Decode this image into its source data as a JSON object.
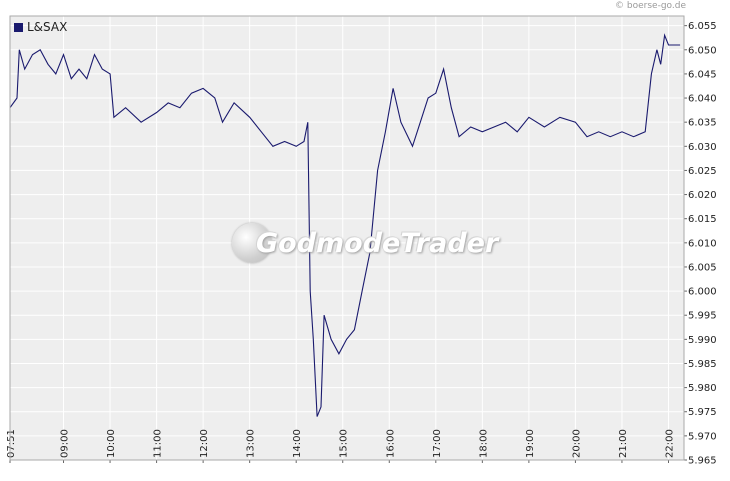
{
  "copyright": "© boerse-go.de",
  "watermark": "GodmodeTrader",
  "colors": {
    "line": "#1a1a6e",
    "plot_bg": "#eeeeee",
    "grid": "#ffffff",
    "frame": "#aaaaaa"
  },
  "chart_data": {
    "type": "line",
    "series": [
      {
        "name": "L&SAX",
        "points": [
          [
            "07:51",
            6.038
          ],
          [
            "08:00",
            6.04
          ],
          [
            "08:03",
            6.05
          ],
          [
            "08:10",
            6.046
          ],
          [
            "08:20",
            6.049
          ],
          [
            "08:30",
            6.05
          ],
          [
            "08:40",
            6.047
          ],
          [
            "08:50",
            6.045
          ],
          [
            "09:00",
            6.049
          ],
          [
            "09:10",
            6.044
          ],
          [
            "09:20",
            6.046
          ],
          [
            "09:30",
            6.044
          ],
          [
            "09:40",
            6.049
          ],
          [
            "09:50",
            6.046
          ],
          [
            "10:00",
            6.045
          ],
          [
            "10:05",
            6.036
          ],
          [
            "10:20",
            6.038
          ],
          [
            "10:40",
            6.035
          ],
          [
            "11:00",
            6.037
          ],
          [
            "11:15",
            6.039
          ],
          [
            "11:30",
            6.038
          ],
          [
            "11:45",
            6.041
          ],
          [
            "12:00",
            6.042
          ],
          [
            "12:15",
            6.04
          ],
          [
            "12:25",
            6.035
          ],
          [
            "12:40",
            6.039
          ],
          [
            "13:00",
            6.036
          ],
          [
            "13:15",
            6.033
          ],
          [
            "13:30",
            6.03
          ],
          [
            "13:45",
            6.031
          ],
          [
            "14:00",
            6.03
          ],
          [
            "14:10",
            6.031
          ],
          [
            "14:15",
            6.035
          ],
          [
            "14:18",
            6.0
          ],
          [
            "14:22",
            5.99
          ],
          [
            "14:27",
            5.974
          ],
          [
            "14:32",
            5.976
          ],
          [
            "14:36",
            5.995
          ],
          [
            "14:45",
            5.99
          ],
          [
            "14:55",
            5.987
          ],
          [
            "15:05",
            5.99
          ],
          [
            "15:15",
            5.992
          ],
          [
            "15:25",
            6.0
          ],
          [
            "15:35",
            6.008
          ],
          [
            "15:45",
            6.025
          ],
          [
            "15:55",
            6.033
          ],
          [
            "16:05",
            6.042
          ],
          [
            "16:15",
            6.035
          ],
          [
            "16:30",
            6.03
          ],
          [
            "16:40",
            6.035
          ],
          [
            "16:50",
            6.04
          ],
          [
            "17:00",
            6.041
          ],
          [
            "17:10",
            6.046
          ],
          [
            "17:20",
            6.038
          ],
          [
            "17:30",
            6.032
          ],
          [
            "17:45",
            6.034
          ],
          [
            "18:00",
            6.033
          ],
          [
            "18:15",
            6.034
          ],
          [
            "18:30",
            6.035
          ],
          [
            "18:45",
            6.033
          ],
          [
            "19:00",
            6.036
          ],
          [
            "19:20",
            6.034
          ],
          [
            "19:40",
            6.036
          ],
          [
            "20:00",
            6.035
          ],
          [
            "20:15",
            6.032
          ],
          [
            "20:30",
            6.033
          ],
          [
            "20:45",
            6.032
          ],
          [
            "21:00",
            6.033
          ],
          [
            "21:15",
            6.032
          ],
          [
            "21:30",
            6.033
          ],
          [
            "21:38",
            6.045
          ],
          [
            "21:45",
            6.05
          ],
          [
            "21:50",
            6.047
          ],
          [
            "21:55",
            6.053
          ],
          [
            "22:00",
            6.051
          ],
          [
            "22:15",
            6.051
          ]
        ]
      }
    ],
    "x_range": [
      "07:51",
      "22:20"
    ],
    "x_ticks": [
      "07:51",
      "09:00",
      "10:00",
      "11:00",
      "12:00",
      "13:00",
      "14:00",
      "15:00",
      "16:00",
      "17:00",
      "18:00",
      "19:00",
      "20:00",
      "21:00",
      "22:00"
    ],
    "y_ticks": [
      "6.055",
      "6.050",
      "6.045",
      "6.040",
      "6.035",
      "6.030",
      "6.025",
      "6.020",
      "6.015",
      "6.010",
      "6.005",
      "6.000",
      "5.995",
      "5.990",
      "5.985",
      "5.980",
      "5.975",
      "5.970",
      "5.965"
    ],
    "ylim": [
      5.965,
      6.057
    ],
    "grid": true,
    "legend_position": "top-left"
  }
}
